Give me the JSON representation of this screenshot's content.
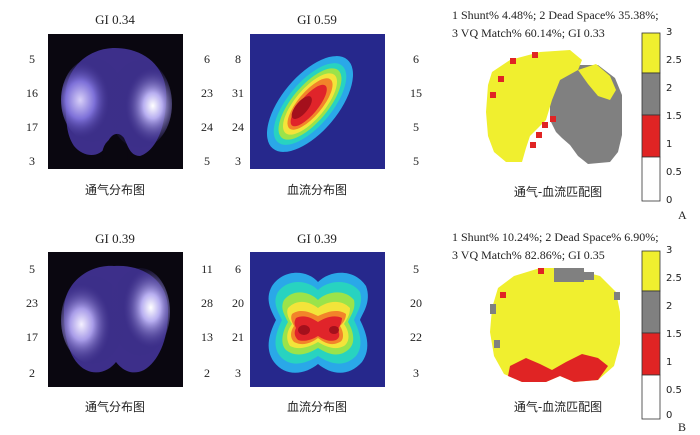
{
  "panels": [
    {
      "label": "A",
      "ventilation": {
        "title": "GI 0.34",
        "caption": "通气分布图",
        "left_values": [
          "5",
          "16",
          "17",
          "3"
        ],
        "right_values": [
          "6",
          "23",
          "24",
          "5"
        ]
      },
      "perfusion": {
        "title": "GI 0.59",
        "caption": "血流分布图",
        "left_values": [
          "8",
          "31",
          "24",
          "3"
        ],
        "right_values": [
          "6",
          "15",
          "5",
          "5"
        ]
      },
      "vq": {
        "stats_line1": "1 Shunt% 4.48%; 2 Dead Space% 35.38%;",
        "stats_line2": "3 VQ Match% 60.14%; GI 0.33",
        "caption": "通气-血流匹配图"
      }
    },
    {
      "label": "B",
      "ventilation": {
        "title": "GI 0.39",
        "caption": "通气分布图",
        "left_values": [
          "5",
          "23",
          "17",
          "2"
        ],
        "right_values": [
          "11",
          "28",
          "13",
          "2"
        ]
      },
      "perfusion": {
        "title": "GI 0.39",
        "caption": "血流分布图",
        "left_values": [
          "6",
          "20",
          "21",
          "3"
        ],
        "right_values": [
          "5",
          "20",
          "22",
          "3"
        ]
      },
      "vq": {
        "stats_line1": "1 Shunt% 10.24%; 2 Dead Space% 6.90%;",
        "stats_line2": "3 VQ Match% 82.86%; GI 0.35",
        "caption": "通气-血流匹配图"
      }
    }
  ],
  "colorbar": {
    "ticks": [
      "3",
      "2.5",
      "2",
      "1.5",
      "1",
      "0.5",
      "0"
    ],
    "colors": {
      "match": "#f0ef2f",
      "dead_space": "#808080",
      "shunt": "#e02424",
      "none": "#ffffff"
    }
  }
}
